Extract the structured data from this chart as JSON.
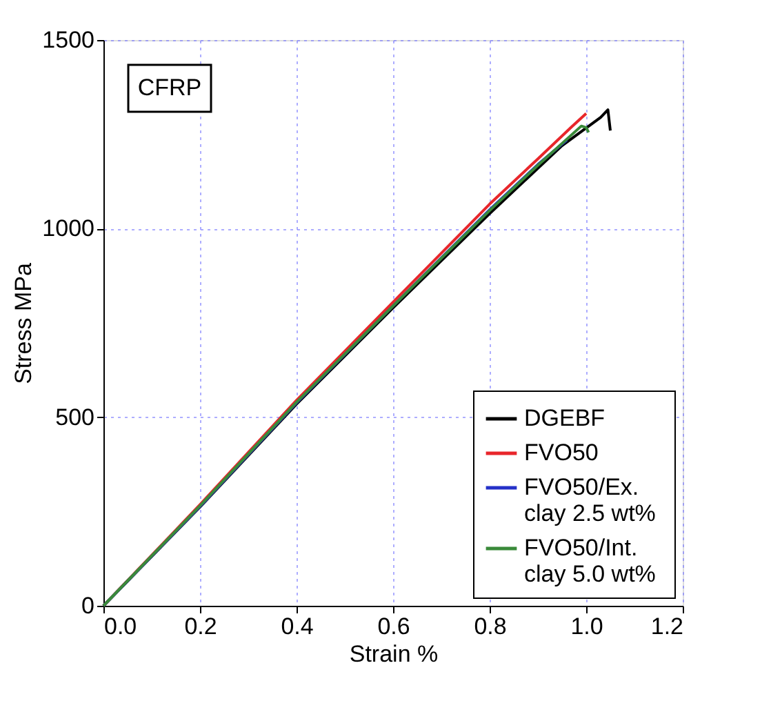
{
  "chart_data": {
    "type": "line",
    "xlabel": "Strain  %",
    "ylabel": "Stress  MPa",
    "xlim": [
      0,
      1.2
    ],
    "xticks": [
      {
        "value": 0,
        "label": "0.0"
      },
      0.2,
      0.4,
      0.6,
      0.8,
      {
        "value": 1,
        "label": "1.0"
      },
      1.2
    ],
    "ylim": [
      0,
      1500
    ],
    "yticks": [
      0,
      500,
      1000,
      1500
    ],
    "grid": true,
    "legend": "bottom right",
    "line_style": "solid",
    "marker": "none",
    "annotations": [
      "CFRP"
    ],
    "series": [
      {
        "name": "DGEBF",
        "color": "#000000",
        "x": [
          0,
          0.2,
          0.4,
          0.6,
          0.8,
          0.95,
          1.03,
          1.045,
          1.05
        ],
        "values": [
          0,
          262,
          535,
          790,
          1040,
          1220,
          1295,
          1315,
          1260
        ]
      },
      {
        "name": "FVO50",
        "color": "#e8262b",
        "x": [
          0,
          0.2,
          0.4,
          0.6,
          0.8,
          0.9,
          0.97,
          1.0
        ],
        "values": [
          0,
          268,
          545,
          805,
          1065,
          1185,
          1270,
          1305
        ]
      },
      {
        "name": "FVO50/Ex.\nclay  2.5 wt%",
        "color": "#2431c8",
        "x": [
          0,
          0.2,
          0.4,
          0.6,
          0.8,
          0.9,
          0.96
        ],
        "values": [
          0,
          263,
          538,
          795,
          1050,
          1170,
          1235
        ]
      },
      {
        "name": "FVO50/Int.\nclay  5.0 wt%",
        "color": "#3a8a3a",
        "x": [
          0,
          0.2,
          0.4,
          0.6,
          0.8,
          0.9,
          0.99,
          1.0,
          1.005
        ],
        "values": [
          0,
          265,
          540,
          795,
          1048,
          1168,
          1272,
          1268,
          1255
        ]
      }
    ]
  }
}
